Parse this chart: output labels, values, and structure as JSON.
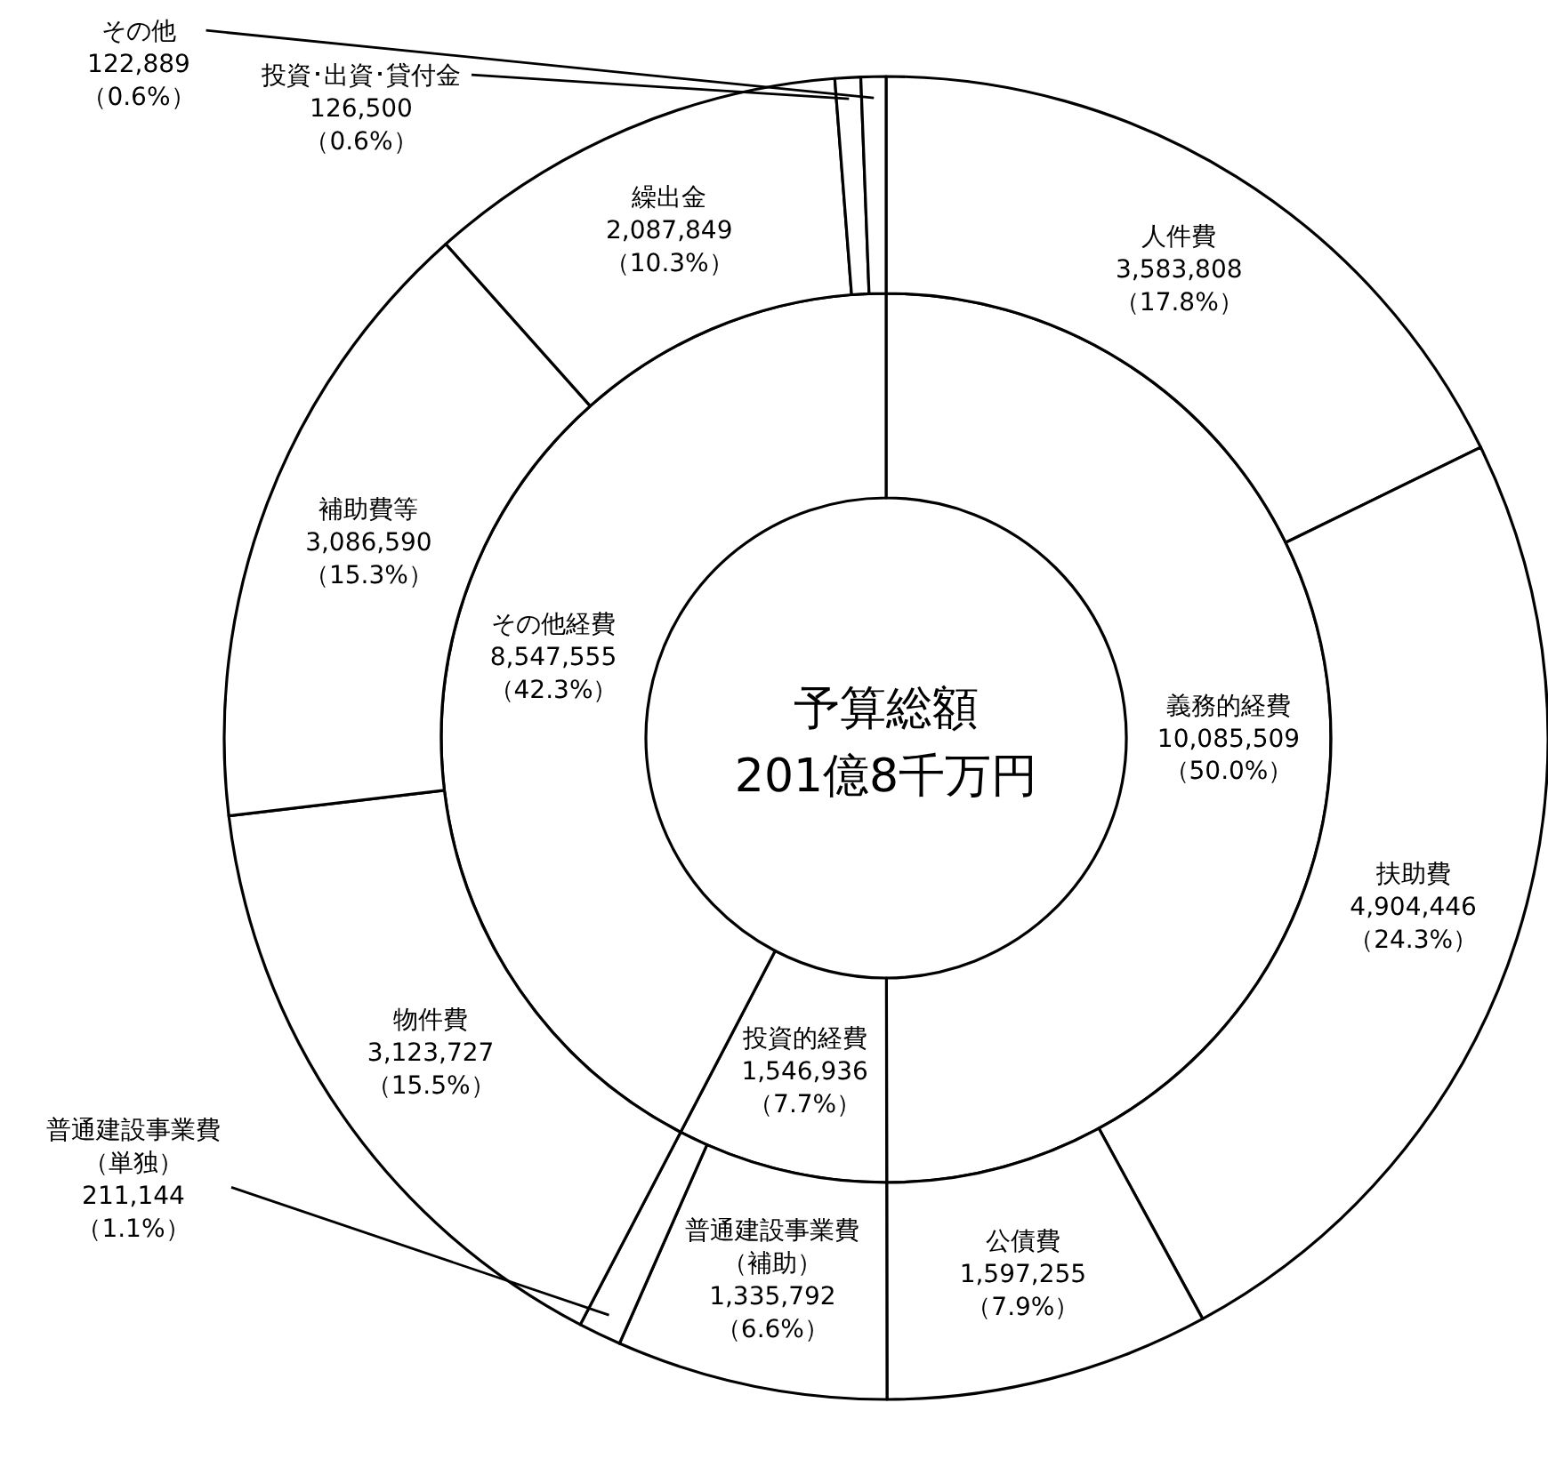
{
  "chart_data": [
    {
      "type": "donut",
      "title": "予算総額",
      "subtitle": "201億8千万円",
      "categories": [
        "義務的経費",
        "投資的経費",
        "その他経費"
      ],
      "values": [
        10085509,
        1546936,
        8547555
      ],
      "colors": [
        "#ffffff",
        "#ffffff",
        "#ffffff"
      ],
      "value_labels": [
        "10,085,509 （50.0%）",
        "1,546,936 （7.7%）",
        "8,547,555 （42.3%）"
      ]
    },
    {
      "type": "donut",
      "categories": [
        "人件費",
        "扶助費",
        "公債費",
        "普通建設事業費（補助）",
        "普通建設事業費（単独）",
        "物件費",
        "補助費等",
        "繰出金",
        "投資･出資･貸付金",
        "その他"
      ],
      "values": [
        3583808,
        4904446,
        1597255,
        1335792,
        211144,
        3123727,
        3086590,
        2087849,
        126500,
        122889
      ],
      "colors": [
        "#ffffff",
        "#ffffff",
        "#ffffff",
        "#ffffff",
        "#ffffff",
        "#ffffff",
        "#ffffff",
        "#ffffff",
        "#ffffff",
        "#ffffff"
      ],
      "value_labels": [
        "3,583,808 （17.8%）",
        "4,904,446 （24.3%）",
        "1,597,255 （7.9%）",
        "1,335,792 （6.6%）",
        "211,144 （1.1%）",
        "3,123,727 （15.5%）",
        "3,086,590 （15.3%）",
        "2,087,849 （10.3%）",
        "126,500 （0.6%）",
        "122,889 （0.6%）"
      ]
    }
  ]
}
